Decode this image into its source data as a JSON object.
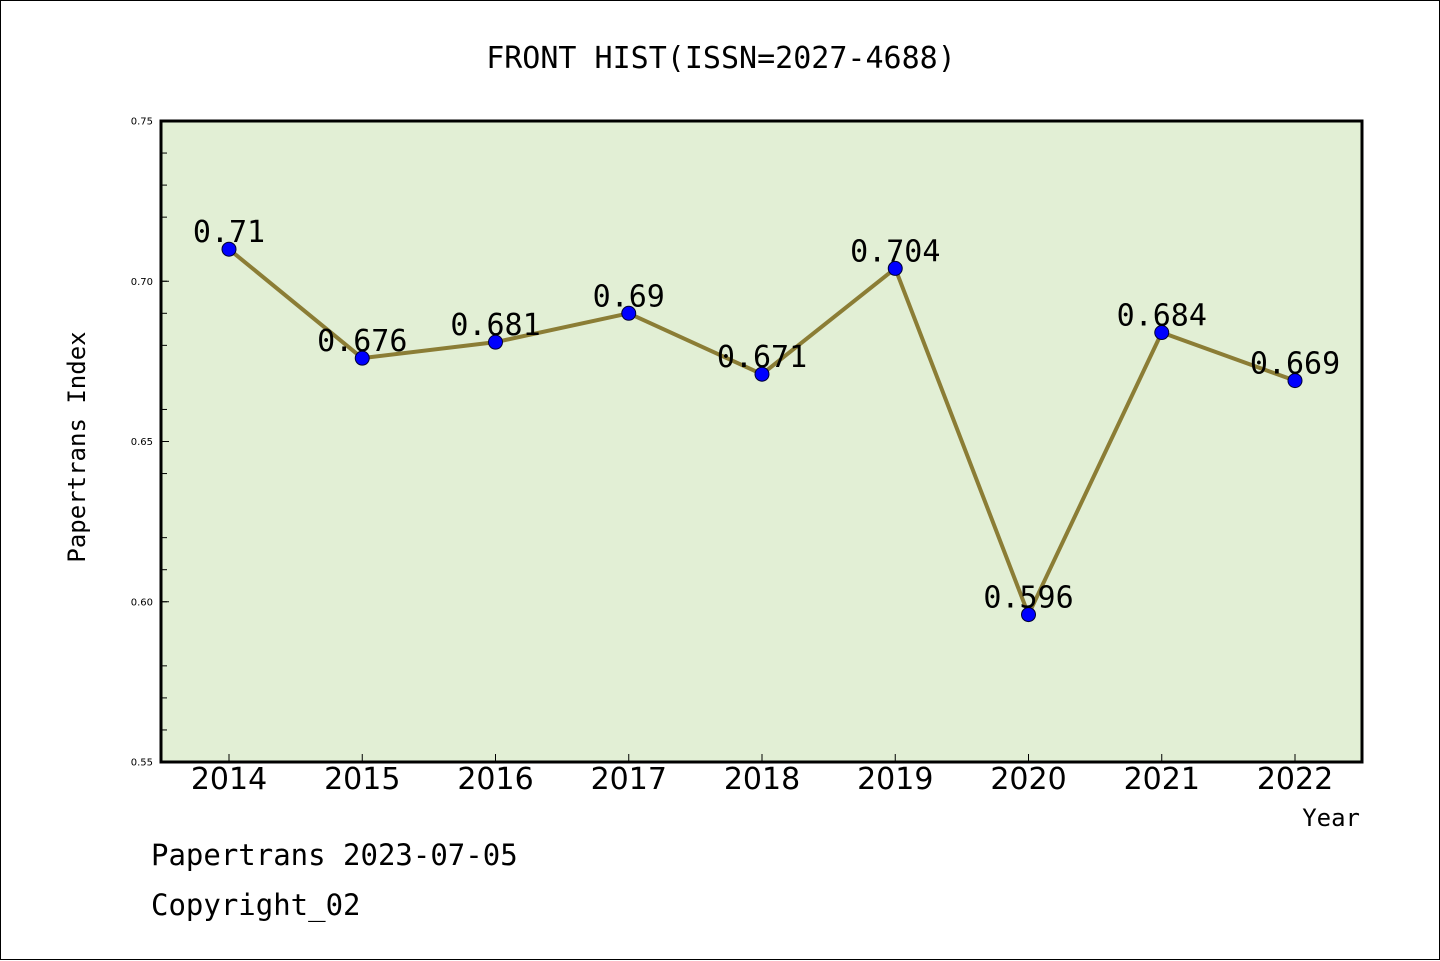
{
  "chart_data": {
    "type": "line",
    "title": "FRONT HIST(ISSN=2027-4688)",
    "xlabel": "Year",
    "ylabel": "Papertrans Index",
    "categories": [
      "2014",
      "2015",
      "2016",
      "2017",
      "2018",
      "2019",
      "2020",
      "2021",
      "2022"
    ],
    "values": [
      0.71,
      0.676,
      0.681,
      0.69,
      0.671,
      0.704,
      0.596,
      0.684,
      0.669
    ],
    "data_labels": [
      "0.71",
      "0.676",
      "0.681",
      "0.69",
      "0.671",
      "0.704",
      "0.596",
      "0.684",
      "0.669"
    ],
    "ylim": [
      0.55,
      0.75
    ],
    "yticks": [
      "0.55",
      "0.60",
      "0.65",
      "0.70",
      "0.75"
    ],
    "grid": false,
    "legend": "none",
    "colors": {
      "plot_background": "#e2efd5",
      "line": "#8b7d35",
      "marker": "#0000ff"
    }
  },
  "footer": {
    "line1": "Papertrans 2023-07-05",
    "line2": "Copyright_02"
  }
}
